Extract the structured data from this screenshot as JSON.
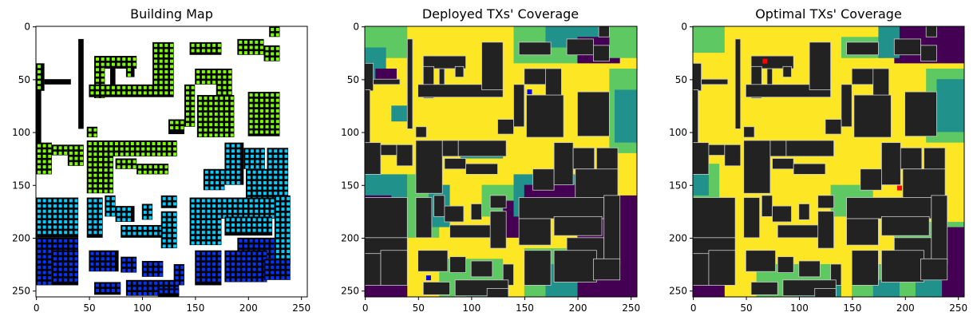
{
  "palette": {
    "background_white": "#ffffff",
    "building_black": "#000000",
    "tx_green": "#7cfc00",
    "tx_cyan": "#00ccff",
    "tx_blue": "#0033ff",
    "coverage_yellow": "#fde725",
    "coverage_light_green": "#5ec962",
    "coverage_teal": "#21918c",
    "coverage_purple": "#440154",
    "building_overlay": "#222222",
    "deployed_tx_marker": "#0000ff",
    "optimal_tx_marker": "#ff0000"
  },
  "chart_data": [
    {
      "type": "heatmap",
      "title": "Building Map",
      "xlabel": "",
      "ylabel": "",
      "xlim": [
        0,
        255
      ],
      "ylim": [
        255,
        0
      ],
      "xticks": [
        0,
        50,
        100,
        150,
        200,
        250
      ],
      "yticks": [
        0,
        50,
        100,
        150,
        200,
        250
      ],
      "grid": false
    },
    {
      "type": "heatmap",
      "title": "Deployed TXs' Coverage",
      "xlabel": "",
      "ylabel": "",
      "xlim": [
        0,
        255
      ],
      "ylim": [
        255,
        0
      ],
      "xticks": [
        0,
        50,
        100,
        150,
        200,
        250
      ],
      "yticks": [
        0,
        50,
        100,
        150,
        200,
        250
      ],
      "grid": false,
      "tx_markers": [
        {
          "x": 155,
          "y": 62
        },
        {
          "x": 60,
          "y": 238
        }
      ]
    },
    {
      "type": "heatmap",
      "title": "Optimal TXs' Coverage",
      "xlabel": "",
      "ylabel": "",
      "xlim": [
        0,
        255
      ],
      "ylim": [
        255,
        0
      ],
      "xticks": [
        0,
        50,
        100,
        150,
        200,
        250
      ],
      "yticks": [
        0,
        50,
        100,
        150,
        200,
        250
      ],
      "grid": false,
      "tx_markers": [
        {
          "x": 68,
          "y": 33
        },
        {
          "x": 195,
          "y": 153
        }
      ]
    }
  ]
}
